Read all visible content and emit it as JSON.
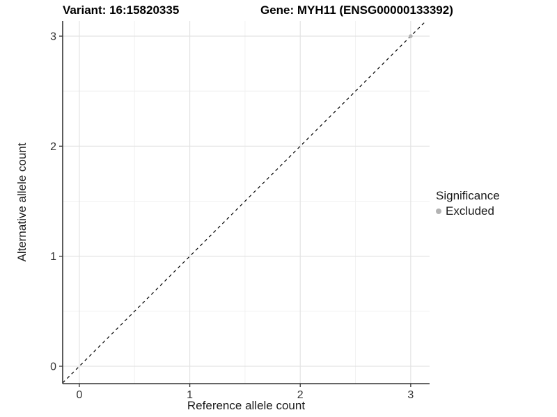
{
  "chart_data": {
    "type": "scatter",
    "titles": [
      "Variant: 16:15820335",
      "Gene: MYH11 (ENSG00000133392)"
    ],
    "xlabel": "Reference allele count",
    "ylabel": "Alternative allele count",
    "xticks": [
      0,
      1,
      2,
      3
    ],
    "yticks": [
      0,
      1,
      2,
      3
    ],
    "xtick_labels": [
      "0",
      "1",
      "2",
      "3"
    ],
    "ytick_labels": [
      "0",
      "1",
      "2",
      "3"
    ],
    "xlim": [
      -0.151,
      3.171
    ],
    "ylim": [
      -0.158,
      3.139
    ],
    "grid": {
      "major_color": "#e3e3e3",
      "minor_color": "#f1f1f1",
      "minor_at_midpoints": true
    },
    "axis_color": "#333333",
    "reference_line": {
      "kind": "identity",
      "slope": 1,
      "intercept": 0,
      "style": "dashed",
      "color": "#000000"
    },
    "series": [
      {
        "name": "Excluded",
        "color": "#b3b3b3",
        "points": [
          {
            "x": 3,
            "y": 3
          }
        ]
      }
    ],
    "legend_position": "right"
  },
  "legend": {
    "title": "Significance",
    "items": [
      {
        "label": "Excluded",
        "color": "#b3b3b3"
      }
    ]
  }
}
